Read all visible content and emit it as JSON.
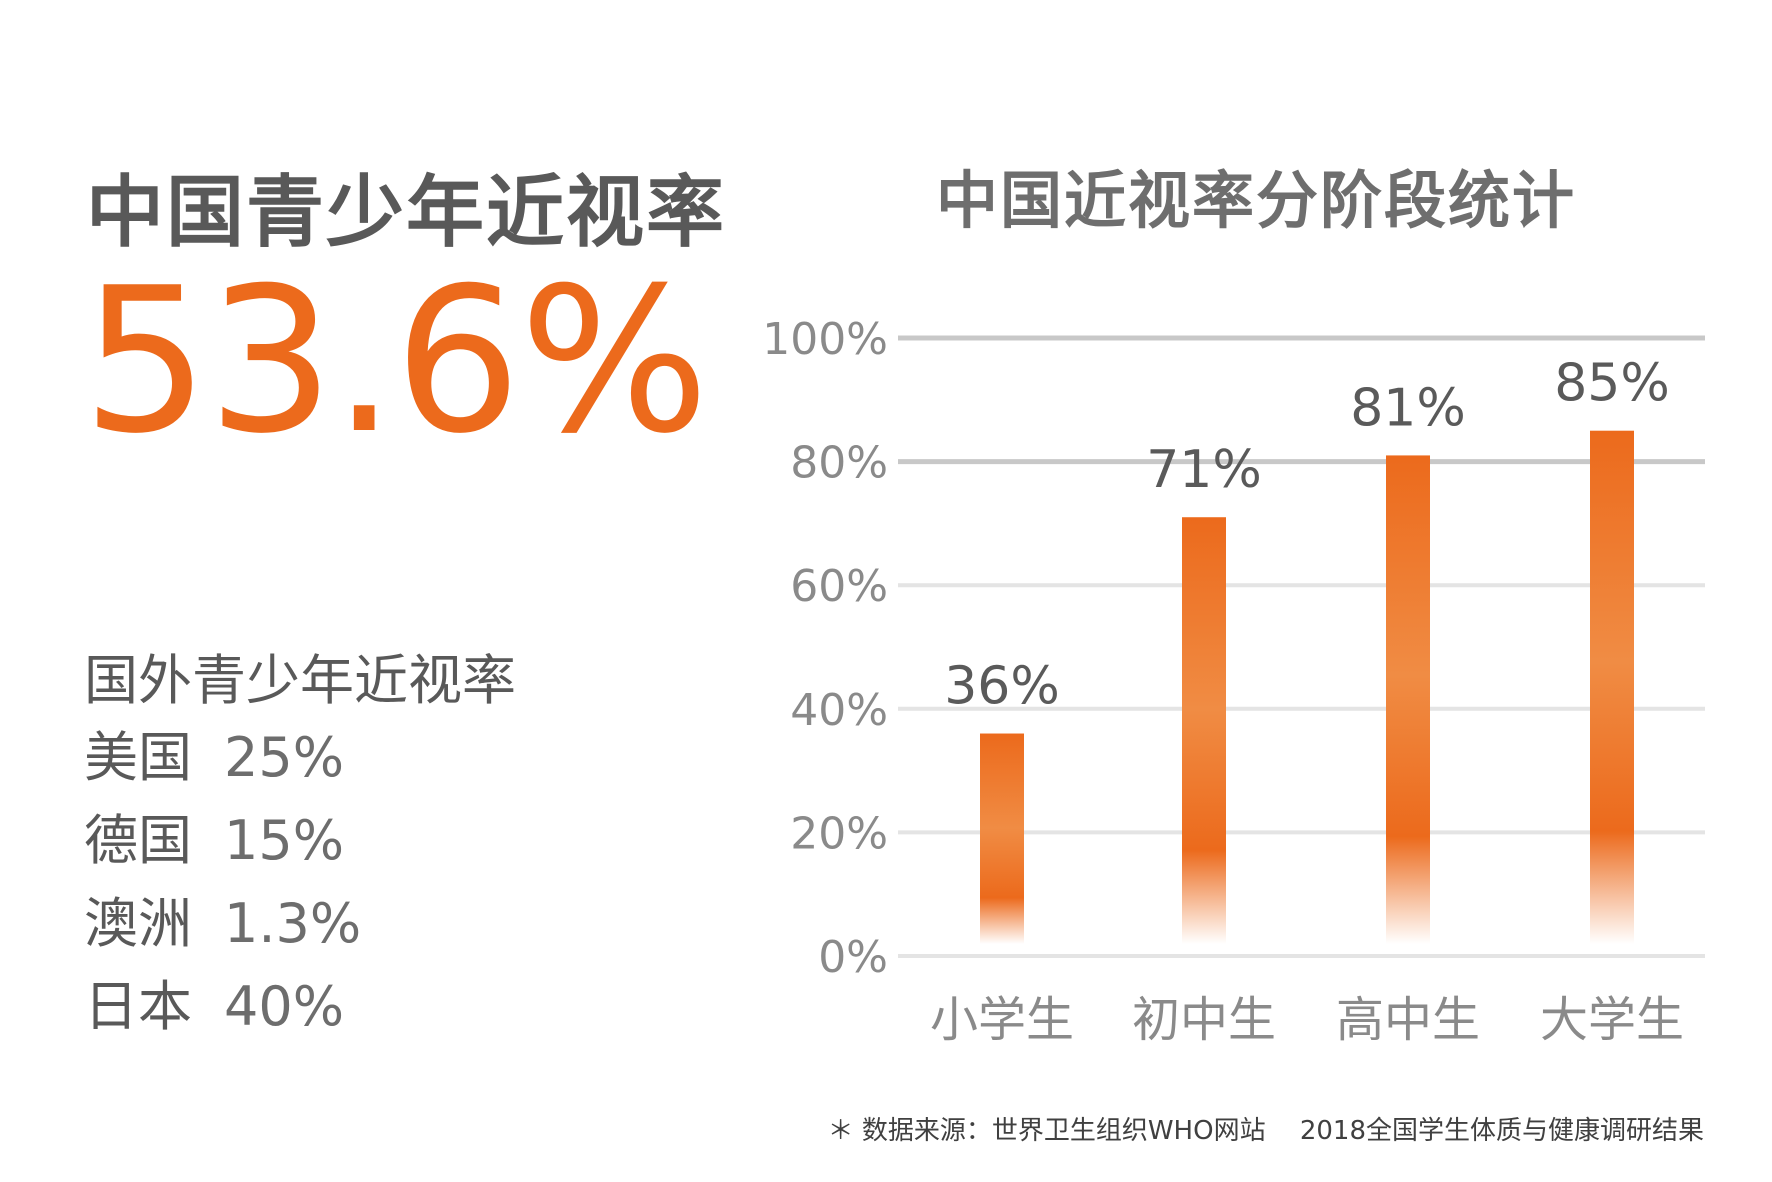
{
  "left_panel": {
    "title": "中国青少年近视率",
    "rate": "53.6%",
    "intl_title": "国外青少年近视率",
    "countries": [
      {
        "name": "美国",
        "value": "25%"
      },
      {
        "name": "德国",
        "value": "15%"
      },
      {
        "name": "澳洲",
        "value": "1.3%"
      },
      {
        "name": "日本",
        "value": "40%"
      }
    ]
  },
  "chart_data": {
    "type": "bar",
    "title": "中国近视率分阶段统计",
    "categories": [
      "小学生",
      "初中生",
      "高中生",
      "大学生"
    ],
    "values": [
      36,
      71,
      81,
      85
    ],
    "value_labels": [
      "36%",
      "71%",
      "81%",
      "85%"
    ],
    "ylim": [
      0,
      100
    ],
    "yticks": [
      0,
      20,
      40,
      60,
      80,
      100
    ],
    "ytick_labels": [
      "0%",
      "20%",
      "40%",
      "60%",
      "80%",
      "100%"
    ],
    "grid": true,
    "bar_color": "#ec6a1c"
  },
  "source": "＊ 数据来源：世界卫生组织WHO网站　 2018全国学生体质与健康调研结果",
  "colors": {
    "accent": "#ec6a1c",
    "text": "#595959"
  }
}
